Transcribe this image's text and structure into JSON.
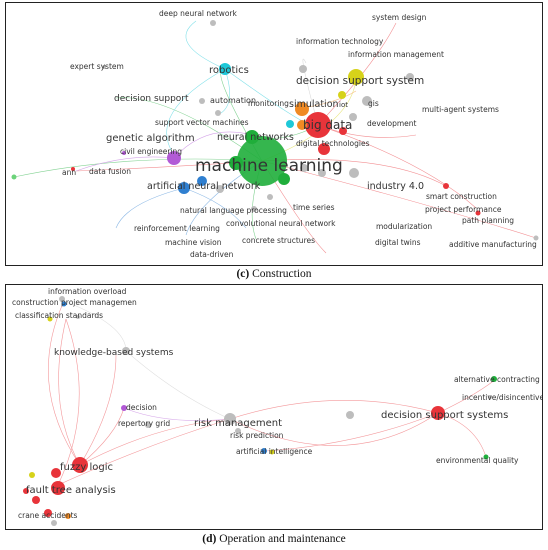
{
  "panels": {
    "c": {
      "caption_letter": "(c)",
      "caption_text": " Construction",
      "labels": [
        "deep neural network",
        "system design",
        "information technology",
        "information management",
        "expert system",
        "robotics",
        "decision support system",
        "decision support",
        "automation",
        "simulation",
        "gis",
        "monitoring",
        "iot",
        "multi-agent systems",
        "support vector machines",
        "big data",
        "development",
        "genetic algorithm",
        "neural networks",
        "digital technologies",
        "civil engineering",
        "machine learning",
        "ann",
        "data fusion",
        "artificial neural network",
        "industry 4.0",
        "smart construction",
        "time series",
        "project performance",
        "natural language processing",
        "path planning",
        "convolutional neural network",
        "reinforcement learning",
        "modularization",
        "concrete structures",
        "digital twins",
        "additive manufacturing",
        "machine vision",
        "data-driven"
      ]
    },
    "d": {
      "caption_letter": "(d)",
      "caption_text": " Operation and maintenance",
      "labels": [
        "information overload",
        "construction project managemen",
        "classification standards",
        "knowledge-based systems",
        "alternative contracting",
        "incentive/disincentive",
        "decision",
        "risk management",
        "decision support systems",
        "repertory grid",
        "risk prediction",
        "artificial intelligence",
        "environmental quality",
        "fuzzy logic",
        "fault tree analysis",
        "crane accidents"
      ]
    }
  },
  "colors": {
    "green": "#1fae3b",
    "red": "#e8343a",
    "blue": "#2f7fd0",
    "cyan": "#1ec8d8",
    "yellow": "#d6d21a",
    "purple": "#b25ad6",
    "orange": "#f08a24",
    "grey": "#bdbdbd"
  }
}
